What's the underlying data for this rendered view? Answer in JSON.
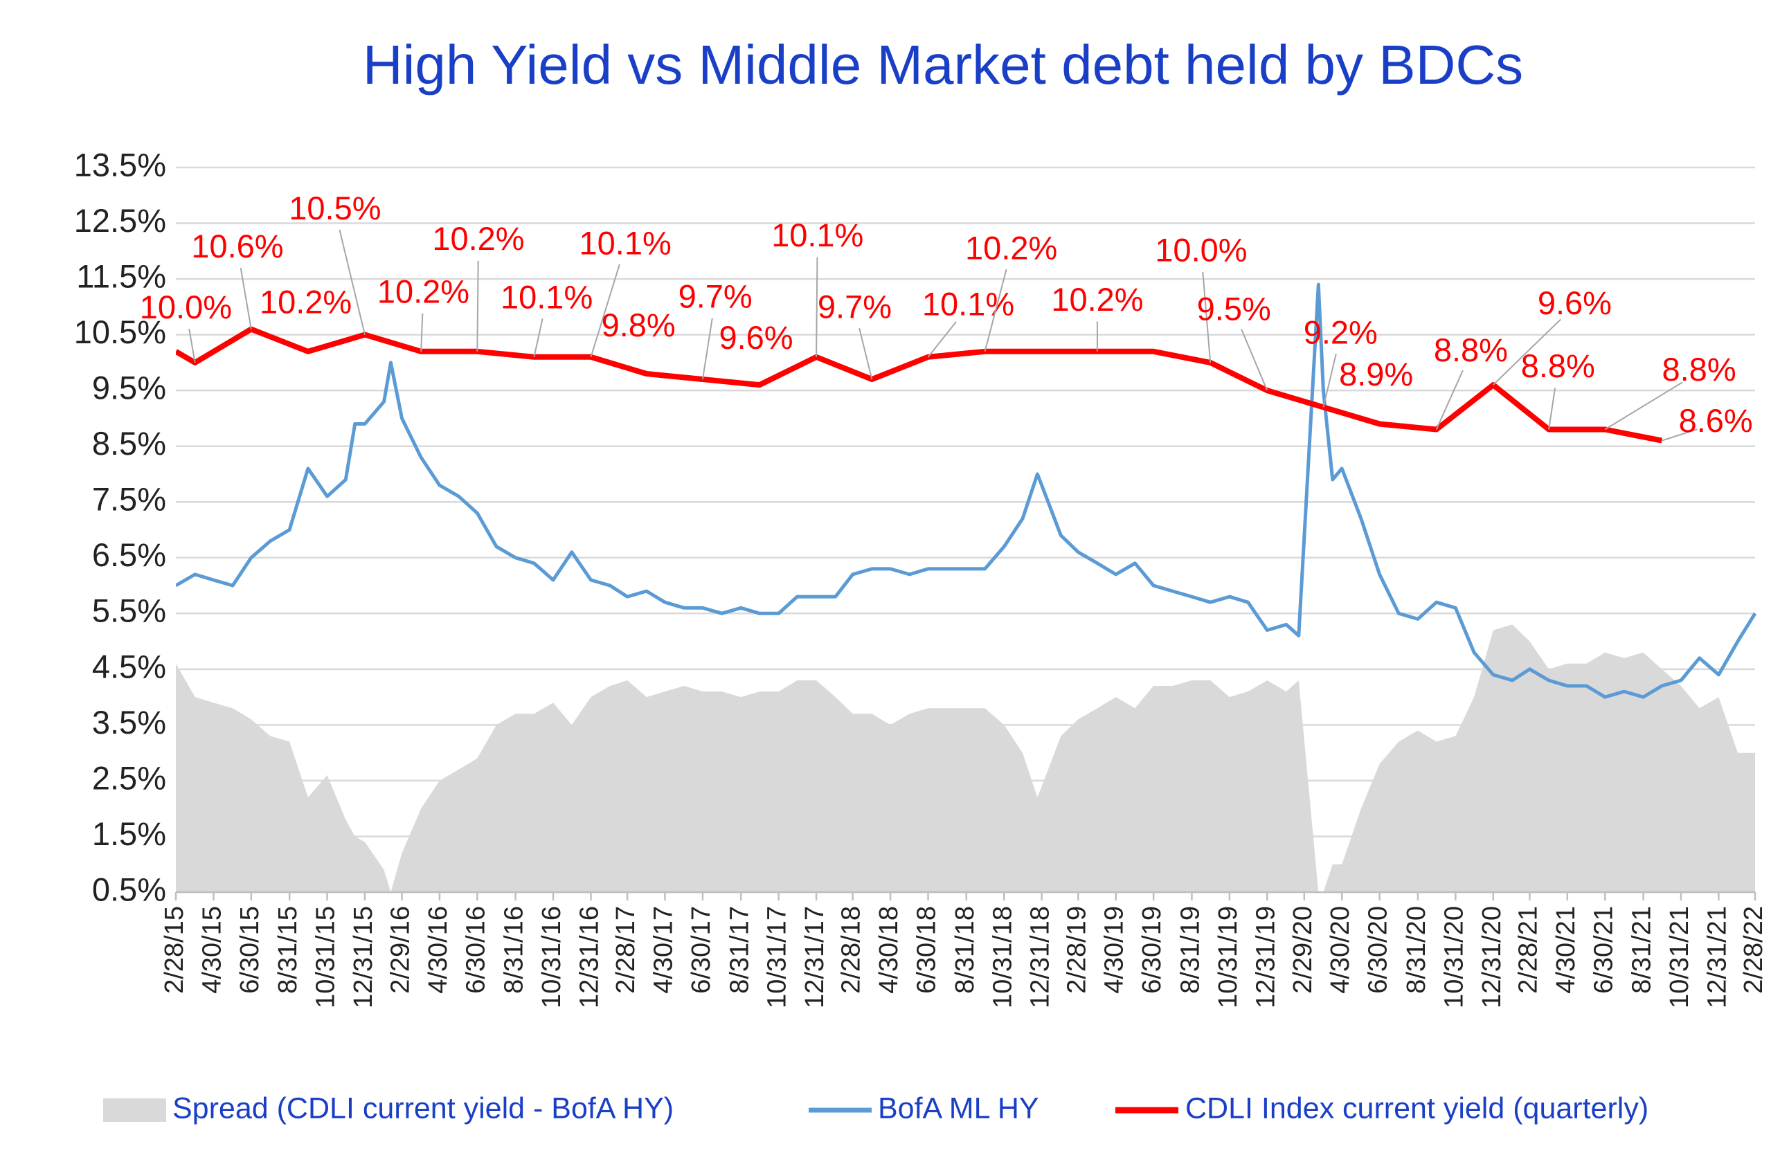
{
  "chart_data": {
    "type": "line",
    "title": "High Yield  vs  Middle Market debt held by BDCs",
    "xlim": [
      "2/28/15",
      "2/28/22"
    ],
    "xticks": [
      "2/28/15",
      "4/30/15",
      "6/30/15",
      "8/31/15",
      "10/31/15",
      "12/31/15",
      "2/29/16",
      "4/30/16",
      "6/30/16",
      "8/31/16",
      "10/31/16",
      "12/31/16",
      "2/28/17",
      "4/30/17",
      "6/30/17",
      "8/31/17",
      "10/31/17",
      "12/31/17",
      "2/28/18",
      "4/30/18",
      "6/30/18",
      "8/31/18",
      "10/31/18",
      "12/31/18",
      "2/28/19",
      "4/30/19",
      "6/30/19",
      "8/31/19",
      "10/31/19",
      "12/31/19",
      "2/29/20",
      "4/30/20",
      "6/30/20",
      "8/31/20",
      "10/31/20",
      "12/31/20",
      "2/28/21",
      "4/30/21",
      "6/30/21",
      "8/31/21",
      "10/31/21",
      "12/31/21",
      "2/28/22"
    ],
    "ylim": [
      0.5,
      13.5
    ],
    "yticks": [
      {
        "value": 0.5,
        "label": "0.5%"
      },
      {
        "value": 1.5,
        "label": "1.5%"
      },
      {
        "value": 2.5,
        "label": "2.5%"
      },
      {
        "value": 3.5,
        "label": "3.5%"
      },
      {
        "value": 4.5,
        "label": "4.5%"
      },
      {
        "value": 5.5,
        "label": "5.5%"
      },
      {
        "value": 6.5,
        "label": "6.5%"
      },
      {
        "value": 7.5,
        "label": "7.5%"
      },
      {
        "value": 8.5,
        "label": "8.5%"
      },
      {
        "value": 9.5,
        "label": "9.5%"
      },
      {
        "value": 10.5,
        "label": "10.5%"
      },
      {
        "value": 11.5,
        "label": "11.5%"
      },
      {
        "value": 12.5,
        "label": "12.5%"
      },
      {
        "value": 13.5,
        "label": "13.5%"
      }
    ],
    "grid": true,
    "x": [
      "2/28/15",
      "3/31/15",
      "4/30/15",
      "5/31/15",
      "6/30/15",
      "7/31/15",
      "8/31/15",
      "9/30/15",
      "10/31/15",
      "11/30/15",
      "12/15/15",
      "12/31/15",
      "1/31/16",
      "2/11/16",
      "2/29/16",
      "3/31/16",
      "4/30/16",
      "5/31/16",
      "6/30/16",
      "7/31/16",
      "8/31/16",
      "9/30/16",
      "10/31/16",
      "11/30/16",
      "12/31/16",
      "1/31/17",
      "2/28/17",
      "3/31/17",
      "4/30/17",
      "5/31/17",
      "6/30/17",
      "7/31/17",
      "8/31/17",
      "9/30/17",
      "10/31/17",
      "11/30/17",
      "12/31/17",
      "1/31/18",
      "2/28/18",
      "3/31/18",
      "4/30/18",
      "5/31/18",
      "6/30/18",
      "7/31/18",
      "8/31/18",
      "9/30/18",
      "10/31/18",
      "11/30/18",
      "12/24/18",
      "12/31/18",
      "1/31/19",
      "2/28/19",
      "3/31/19",
      "4/30/19",
      "5/31/19",
      "6/30/19",
      "7/31/19",
      "8/31/19",
      "9/30/19",
      "10/31/19",
      "11/30/19",
      "12/31/19",
      "1/31/20",
      "2/20/20",
      "3/23/20",
      "3/31/20",
      "4/15/20",
      "4/30/20",
      "5/31/20",
      "6/30/20",
      "7/31/20",
      "8/31/20",
      "9/30/20",
      "10/31/20",
      "11/30/20",
      "12/31/20",
      "1/31/21",
      "2/28/21",
      "3/31/21",
      "4/30/21",
      "5/31/21",
      "6/30/21",
      "7/31/21",
      "8/31/21",
      "9/30/21",
      "10/31/21",
      "11/30/21",
      "12/31/21",
      "1/31/22",
      "2/28/22"
    ],
    "series": [
      {
        "name": "Spread (CDLI current yield - BofA HY)",
        "type": "area",
        "color": "#d9d9d9",
        "values": [
          4.6,
          4.0,
          3.9,
          3.8,
          3.6,
          3.3,
          3.2,
          2.2,
          2.6,
          1.8,
          1.5,
          1.4,
          0.9,
          0.5,
          1.2,
          2.0,
          2.5,
          2.7,
          2.9,
          3.5,
          3.7,
          3.7,
          3.9,
          3.5,
          4.0,
          4.2,
          4.3,
          4.0,
          4.1,
          4.2,
          4.1,
          4.1,
          4.0,
          4.1,
          4.1,
          4.3,
          4.3,
          4.0,
          3.7,
          3.7,
          3.5,
          3.7,
          3.8,
          3.8,
          3.8,
          3.8,
          3.5,
          3.0,
          2.2,
          2.4,
          3.3,
          3.6,
          3.8,
          4.0,
          3.8,
          4.2,
          4.2,
          4.3,
          4.3,
          4.0,
          4.1,
          4.3,
          4.1,
          4.3,
          0.5,
          0.5,
          1.0,
          1.0,
          2.0,
          2.8,
          3.2,
          3.4,
          3.2,
          3.3,
          4.0,
          5.2,
          5.3,
          5.0,
          4.5,
          4.6,
          4.6,
          4.8,
          4.7,
          4.8,
          4.5,
          4.2,
          3.8,
          4.0,
          3.0,
          3.0
        ]
      },
      {
        "name": "BofA ML HY",
        "type": "line",
        "color": "#5b9bd5",
        "values": [
          6.0,
          6.2,
          6.1,
          6.0,
          6.5,
          6.8,
          7.0,
          8.1,
          7.6,
          7.9,
          8.9,
          8.9,
          9.3,
          10.0,
          9.0,
          8.3,
          7.8,
          7.6,
          7.3,
          6.7,
          6.5,
          6.4,
          6.1,
          6.6,
          6.1,
          6.0,
          5.8,
          5.9,
          5.7,
          5.6,
          5.6,
          5.5,
          5.6,
          5.5,
          5.5,
          5.8,
          5.8,
          5.8,
          6.2,
          6.3,
          6.3,
          6.2,
          6.3,
          6.3,
          6.3,
          6.3,
          6.7,
          7.2,
          8.0,
          7.8,
          6.9,
          6.6,
          6.4,
          6.2,
          6.4,
          6.0,
          5.9,
          5.8,
          5.7,
          5.8,
          5.7,
          5.2,
          5.3,
          5.1,
          11.4,
          9.5,
          7.9,
          8.1,
          7.2,
          6.2,
          5.5,
          5.4,
          5.7,
          5.6,
          4.8,
          4.4,
          4.3,
          4.5,
          4.3,
          4.2,
          4.2,
          4.0,
          4.1,
          4.0,
          4.2,
          4.3,
          4.7,
          4.4,
          5.0,
          5.5
        ]
      },
      {
        "name": "CDLI Index current yield (quarterly)",
        "type": "line",
        "color": "#ff0000",
        "x": [
          "2/28/15",
          "3/31/15",
          "6/30/15",
          "9/30/15",
          "12/31/15",
          "3/31/16",
          "6/30/16",
          "9/30/16",
          "12/31/16",
          "3/31/17",
          "6/30/17",
          "9/30/17",
          "12/31/17",
          "3/31/18",
          "6/30/18",
          "9/30/18",
          "12/31/18",
          "3/31/19",
          "6/30/19",
          "9/30/19",
          "12/31/19",
          "3/31/20",
          "6/30/20",
          "9/30/20",
          "12/31/20",
          "3/31/21",
          "6/30/21",
          "9/30/21"
        ],
        "values": [
          10.2,
          10.0,
          10.6,
          10.2,
          10.5,
          10.2,
          10.2,
          10.1,
          10.1,
          9.8,
          9.7,
          9.6,
          10.1,
          9.7,
          10.1,
          10.2,
          10.2,
          10.2,
          10.2,
          10.0,
          9.5,
          9.2,
          8.9,
          8.8,
          9.6,
          8.8,
          8.8,
          8.6
        ],
        "value_labels": [
          null,
          "10.0%",
          "10.6%",
          "10.2%",
          "10.5%",
          "10.2%",
          "10.2%",
          "10.1%",
          "10.1%",
          "9.8%",
          "9.7%",
          "9.6%",
          "10.1%",
          "9.7%",
          "10.1%",
          "10.2%",
          null,
          "10.2%",
          null,
          "10.0%",
          "9.5%",
          "9.2%",
          "8.9%",
          "8.8%",
          "9.6%",
          "8.8%",
          "8.8%",
          "8.6%"
        ]
      }
    ]
  }
}
